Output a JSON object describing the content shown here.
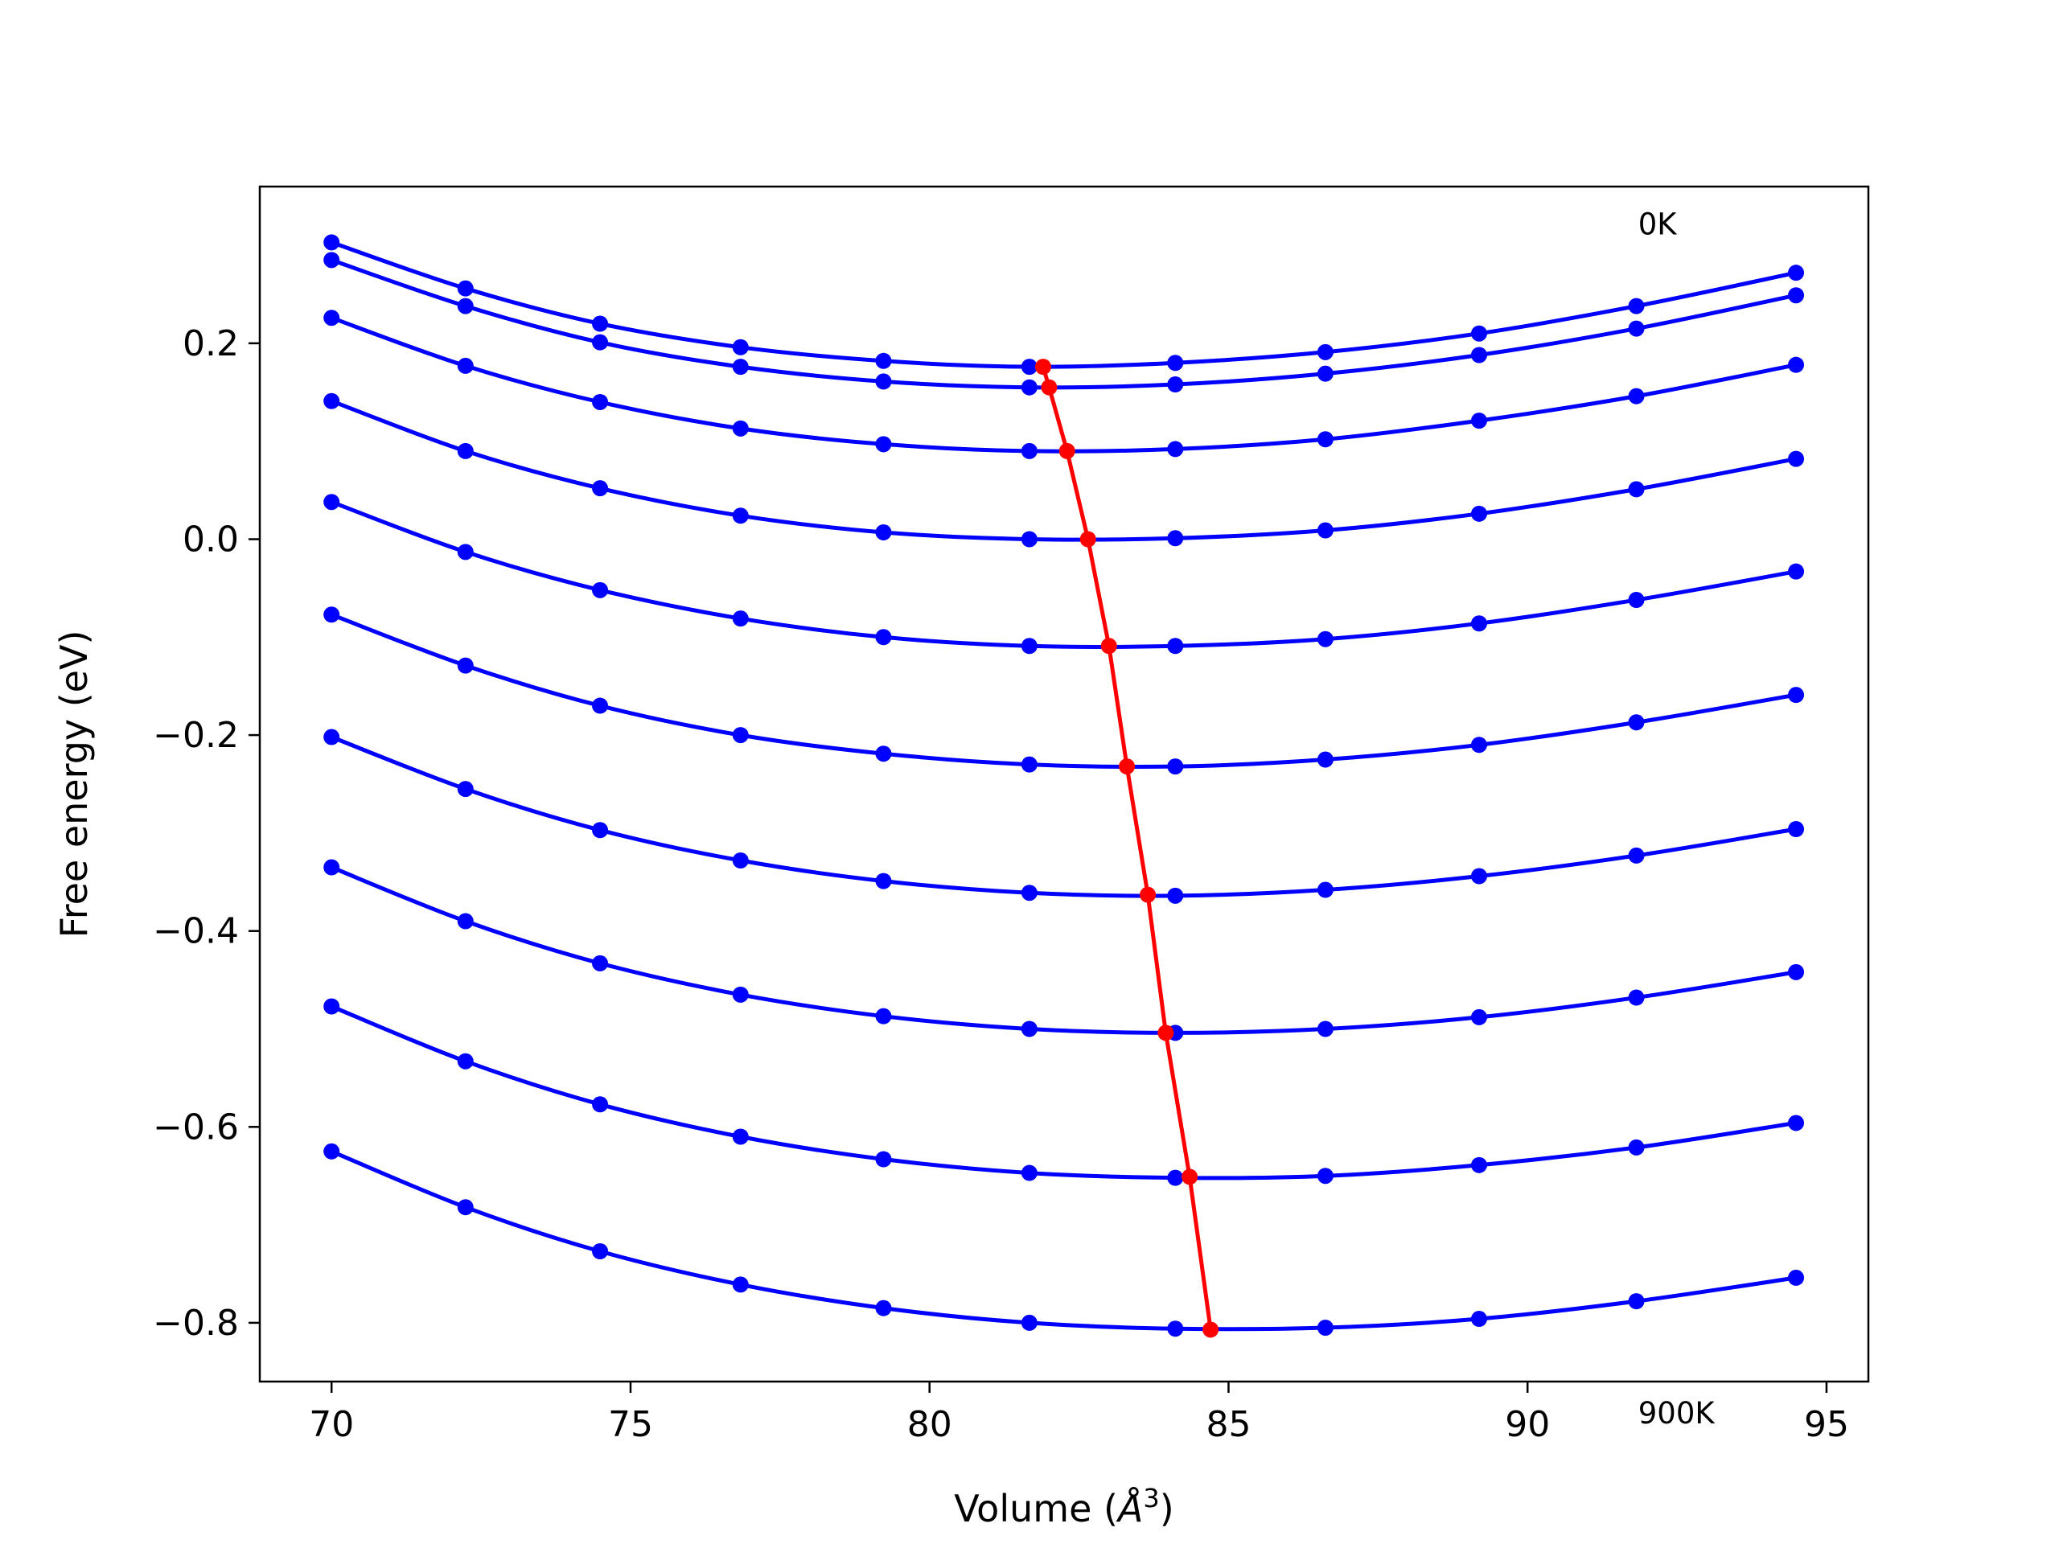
{
  "chart_data": {
    "type": "line",
    "title": "",
    "xlabel": "Volume (",
    "xlabel_symbol": "Å",
    "xlabel_exp": "3",
    "xlabel_close": ")",
    "ylabel": "Free energy (eV)",
    "xlim": [
      68.8,
      95.7
    ],
    "ylim": [
      -0.86,
      0.36
    ],
    "xticks": [
      70,
      75,
      80,
      85,
      90,
      95
    ],
    "xtick_labels": [
      "70",
      "75",
      "80",
      "85",
      "90",
      "95"
    ],
    "yticks": [
      -0.8,
      -0.6,
      -0.4,
      -0.2,
      0.0,
      0.2
    ],
    "ytick_labels": [
      "−0.8",
      "−0.6",
      "−0.4",
      "−0.2",
      "0.0",
      "0.2"
    ],
    "grid": false,
    "annotations": [
      {
        "text": "0K",
        "x": 91.85,
        "y": 0.322
      },
      {
        "text": "900K",
        "x": 91.85,
        "y": -0.892
      }
    ],
    "x": [
      70.0,
      72.24,
      74.49,
      76.84,
      79.23,
      81.67,
      84.11,
      86.62,
      89.19,
      91.82,
      94.49
    ],
    "series": [
      {
        "color": "#0000ff",
        "values": [
          0.303,
          0.256,
          0.22,
          0.196,
          0.182,
          0.176,
          0.18,
          0.191,
          0.21,
          0.238,
          0.272
        ]
      },
      {
        "color": "#0000ff",
        "values": [
          0.285,
          0.238,
          0.201,
          0.176,
          0.161,
          0.155,
          0.158,
          0.169,
          0.188,
          0.215,
          0.249
        ]
      },
      {
        "color": "#0000ff",
        "values": [
          0.226,
          0.177,
          0.14,
          0.113,
          0.097,
          0.09,
          0.092,
          0.102,
          0.121,
          0.146,
          0.178
        ]
      },
      {
        "color": "#0000ff",
        "values": [
          0.141,
          0.09,
          0.052,
          0.024,
          0.007,
          0.0,
          0.001,
          0.009,
          0.026,
          0.051,
          0.082
        ]
      },
      {
        "color": "#0000ff",
        "values": [
          0.038,
          -0.013,
          -0.052,
          -0.081,
          -0.1,
          -0.109,
          -0.109,
          -0.102,
          -0.086,
          -0.062,
          -0.033
        ]
      },
      {
        "color": "#0000ff",
        "values": [
          -0.077,
          -0.129,
          -0.17,
          -0.2,
          -0.219,
          -0.23,
          -0.232,
          -0.225,
          -0.21,
          -0.187,
          -0.159
        ]
      },
      {
        "color": "#0000ff",
        "values": [
          -0.202,
          -0.255,
          -0.297,
          -0.328,
          -0.349,
          -0.361,
          -0.364,
          -0.358,
          -0.344,
          -0.323,
          -0.296
        ]
      },
      {
        "color": "#0000ff",
        "values": [
          -0.335,
          -0.39,
          -0.433,
          -0.465,
          -0.487,
          -0.5,
          -0.504,
          -0.5,
          -0.488,
          -0.468,
          -0.442
        ]
      },
      {
        "color": "#0000ff",
        "values": [
          -0.477,
          -0.533,
          -0.577,
          -0.61,
          -0.633,
          -0.647,
          -0.652,
          -0.65,
          -0.639,
          -0.621,
          -0.596
        ]
      },
      {
        "color": "#0000ff",
        "values": [
          -0.625,
          -0.682,
          -0.727,
          -0.761,
          -0.785,
          -0.8,
          -0.806,
          -0.805,
          -0.796,
          -0.778,
          -0.754
        ]
      }
    ],
    "minima": {
      "color": "#ff0000",
      "x": [
        81.9,
        82.0,
        82.3,
        82.65,
        83.0,
        83.3,
        83.65,
        83.95,
        84.35,
        84.7
      ],
      "y": [
        0.176,
        0.155,
        0.09,
        0.0,
        -0.109,
        -0.232,
        -0.363,
        -0.504,
        -0.651,
        -0.807
      ]
    }
  }
}
